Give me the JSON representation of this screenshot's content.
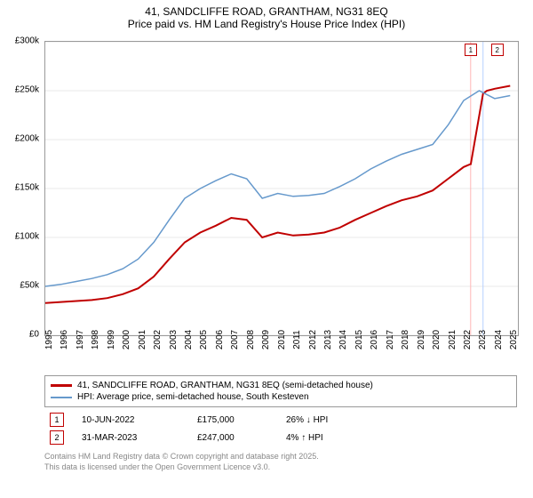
{
  "title": {
    "line1": "41, SANDCLIFFE ROAD, GRANTHAM, NG31 8EQ",
    "line2": "Price paid vs. HM Land Registry's House Price Index (HPI)"
  },
  "chart": {
    "type": "line",
    "plot_bg": "#ffffff",
    "grid_color": "#e8e8e8",
    "axis_color": "#999999",
    "x": {
      "min": 1995,
      "max": 2025.5,
      "ticks": [
        1995,
        1996,
        1997,
        1998,
        1999,
        2000,
        2001,
        2002,
        2003,
        2004,
        2005,
        2006,
        2007,
        2008,
        2009,
        2010,
        2011,
        2012,
        2013,
        2014,
        2015,
        2016,
        2017,
        2018,
        2019,
        2020,
        2021,
        2022,
        2023,
        2024,
        2025
      ]
    },
    "y": {
      "min": 0,
      "max": 300000,
      "ticks": [
        0,
        50000,
        100000,
        150000,
        200000,
        250000,
        300000
      ],
      "tick_labels": [
        "£0",
        "£50k",
        "£100k",
        "£150k",
        "£200k",
        "£250k",
        "£300k"
      ]
    },
    "series": [
      {
        "name": "price_paid",
        "label": "41, SANDCLIFFE ROAD, GRANTHAM, NG31 8EQ (semi-detached house)",
        "color": "#c00000",
        "width": 2,
        "points": [
          [
            1995,
            33000
          ],
          [
            1996,
            34000
          ],
          [
            1997,
            35000
          ],
          [
            1998,
            36000
          ],
          [
            1999,
            38000
          ],
          [
            2000,
            42000
          ],
          [
            2001,
            48000
          ],
          [
            2002,
            60000
          ],
          [
            2003,
            78000
          ],
          [
            2004,
            95000
          ],
          [
            2005,
            105000
          ],
          [
            2006,
            112000
          ],
          [
            2007,
            120000
          ],
          [
            2008,
            118000
          ],
          [
            2009,
            100000
          ],
          [
            2010,
            105000
          ],
          [
            2011,
            102000
          ],
          [
            2012,
            103000
          ],
          [
            2013,
            105000
          ],
          [
            2014,
            110000
          ],
          [
            2015,
            118000
          ],
          [
            2016,
            125000
          ],
          [
            2017,
            132000
          ],
          [
            2018,
            138000
          ],
          [
            2019,
            142000
          ],
          [
            2020,
            148000
          ],
          [
            2021,
            160000
          ],
          [
            2022,
            172000
          ],
          [
            2022.45,
            175000
          ],
          [
            2022.46,
            175000
          ],
          [
            2023.25,
            247000
          ],
          [
            2023.5,
            250000
          ],
          [
            2024,
            252000
          ],
          [
            2025,
            255000
          ]
        ]
      },
      {
        "name": "hpi",
        "label": "HPI: Average price, semi-detached house, South Kesteven",
        "color": "#6699cc",
        "width": 1.5,
        "points": [
          [
            1995,
            50000
          ],
          [
            1996,
            52000
          ],
          [
            1997,
            55000
          ],
          [
            1998,
            58000
          ],
          [
            1999,
            62000
          ],
          [
            2000,
            68000
          ],
          [
            2001,
            78000
          ],
          [
            2002,
            95000
          ],
          [
            2003,
            118000
          ],
          [
            2004,
            140000
          ],
          [
            2005,
            150000
          ],
          [
            2006,
            158000
          ],
          [
            2007,
            165000
          ],
          [
            2008,
            160000
          ],
          [
            2009,
            140000
          ],
          [
            2010,
            145000
          ],
          [
            2011,
            142000
          ],
          [
            2012,
            143000
          ],
          [
            2013,
            145000
          ],
          [
            2014,
            152000
          ],
          [
            2015,
            160000
          ],
          [
            2016,
            170000
          ],
          [
            2017,
            178000
          ],
          [
            2018,
            185000
          ],
          [
            2019,
            190000
          ],
          [
            2020,
            195000
          ],
          [
            2021,
            215000
          ],
          [
            2022,
            240000
          ],
          [
            2023,
            250000
          ],
          [
            2024,
            242000
          ],
          [
            2025,
            245000
          ]
        ]
      }
    ],
    "sale_markers": [
      {
        "n": "1",
        "x": 2022.45,
        "line_color": "#ffb6b6"
      },
      {
        "n": "2",
        "x": 2023.25,
        "line_color": "#b6d0ff"
      }
    ]
  },
  "legend": {
    "items": [
      {
        "color": "#c00000",
        "text": "41, SANDCLIFFE ROAD, GRANTHAM, NG31 8EQ (semi-detached house)"
      },
      {
        "color": "#6699cc",
        "text": "HPI: Average price, semi-detached house, South Kesteven"
      }
    ]
  },
  "sales": [
    {
      "n": "1",
      "date": "10-JUN-2022",
      "price": "£175,000",
      "diff": "26% ↓ HPI"
    },
    {
      "n": "2",
      "date": "31-MAR-2023",
      "price": "£247,000",
      "diff": "4% ↑ HPI"
    }
  ],
  "attribution": {
    "line1": "Contains HM Land Registry data © Crown copyright and database right 2025.",
    "line2": "This data is licensed under the Open Government Licence v3.0."
  }
}
